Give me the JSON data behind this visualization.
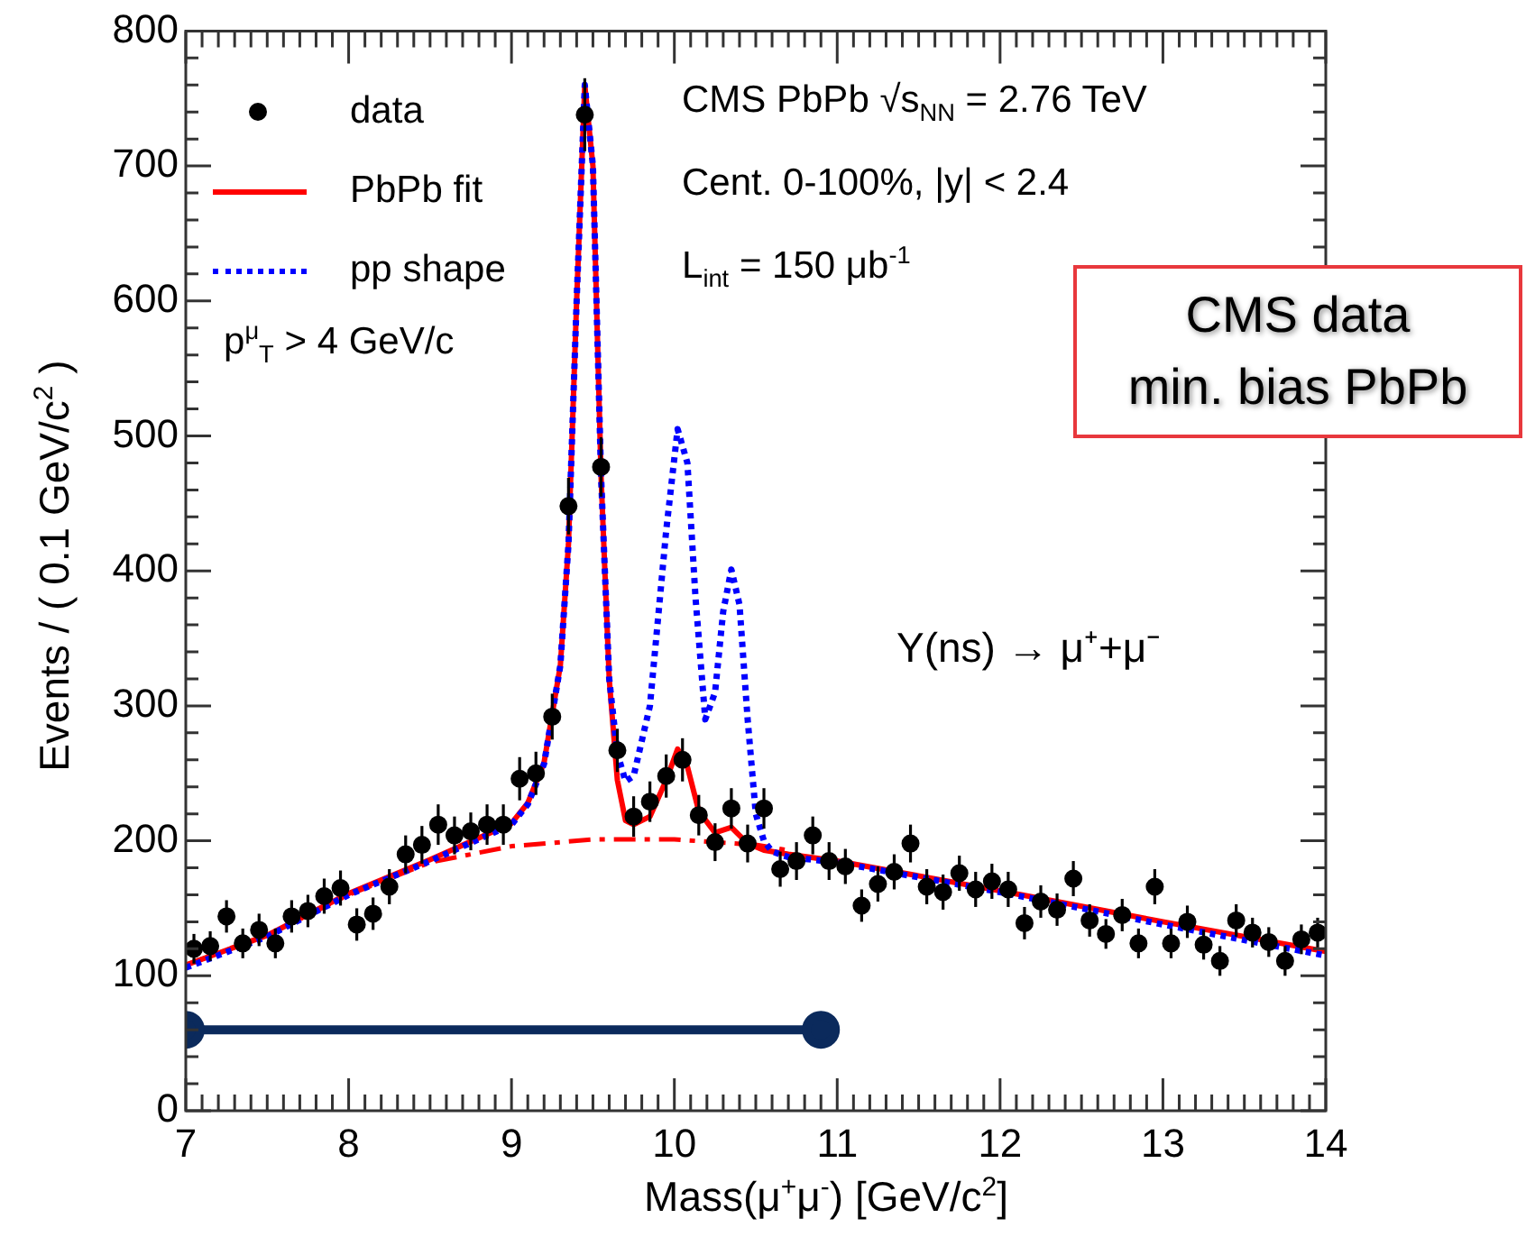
{
  "chart_data": {
    "type": "scatter",
    "xlabel": "Mass(μ$^{+}$μ$^{-}$) [GeV/c$^{2}$]",
    "ylabel": "Events / ( 0.1 GeV/c$^{2}$ )",
    "xlim": [
      7,
      14
    ],
    "xticks": [
      7,
      8,
      9,
      10,
      11,
      12,
      13,
      14
    ],
    "ylim": [
      0,
      800
    ],
    "yticks": [
      0,
      100,
      200,
      300,
      400,
      500,
      600,
      700,
      800
    ],
    "grid": false,
    "legend": "top left",
    "annotations": [
      "CMS PbPb √s$_{NN}$ = 2.76 TeV",
      "Cent. 0-100%, |y| < 2.4",
      "L$_{int}$ = 150 μb$^{-1}$",
      "p$^{μ}$$_{T}$ > 4 GeV/c",
      "Y(ns) → μ⁺+μ⁻",
      "CMS data\nmin. bias PbPb"
    ],
    "series": [
      {
        "name": "data",
        "color": "#000000",
        "marker": "circle",
        "x": [
          7.05,
          7.15,
          7.25,
          7.35,
          7.45,
          7.55,
          7.65,
          7.75,
          7.85,
          7.95,
          8.05,
          8.15,
          8.25,
          8.35,
          8.45,
          8.55,
          8.65,
          8.75,
          8.85,
          8.95,
          9.05,
          9.15,
          9.25,
          9.35,
          9.45,
          9.55,
          9.65,
          9.75,
          9.85,
          9.95,
          10.05,
          10.15,
          10.25,
          10.35,
          10.45,
          10.55,
          10.65,
          10.75,
          10.85,
          10.95,
          11.05,
          11.15,
          11.25,
          11.35,
          11.45,
          11.55,
          11.65,
          11.75,
          11.85,
          11.95,
          12.05,
          12.15,
          12.25,
          12.35,
          12.45,
          12.55,
          12.65,
          12.75,
          12.85,
          12.95,
          13.05,
          13.15,
          13.25,
          13.35,
          13.45,
          13.55,
          13.65,
          13.75,
          13.85,
          13.95
        ],
        "values": [
          120,
          122,
          144,
          124,
          134,
          124,
          144,
          148,
          159,
          165,
          138,
          146,
          166,
          190,
          197,
          212,
          204,
          207,
          212,
          212,
          246,
          250,
          292,
          448,
          738,
          477,
          267,
          218,
          229,
          248,
          260,
          219,
          199,
          224,
          198,
          224,
          179,
          185,
          204,
          185,
          181,
          152,
          168,
          177,
          198,
          166,
          162,
          176,
          164,
          170,
          164,
          139,
          155,
          149,
          172,
          141,
          131,
          145,
          124,
          166,
          124,
          140,
          123,
          111,
          141,
          132,
          125,
          111,
          127,
          132
        ],
        "errors": [
          11,
          11,
          12,
          11,
          12,
          11,
          12,
          12,
          13,
          13,
          12,
          12,
          13,
          14,
          14,
          15,
          14,
          14,
          15,
          15,
          16,
          16,
          17,
          21,
          27,
          22,
          16,
          15,
          15,
          16,
          16,
          15,
          14,
          15,
          14,
          15,
          13,
          14,
          14,
          14,
          13,
          12,
          13,
          13,
          14,
          13,
          13,
          13,
          13,
          13,
          13,
          12,
          12,
          12,
          13,
          12,
          11,
          12,
          11,
          13,
          11,
          12,
          11,
          11,
          12,
          11,
          11,
          11,
          11,
          11
        ]
      },
      {
        "name": "PbPb fit",
        "type": "line",
        "color": "#ff0000",
        "line_style": "solid",
        "x": [
          7,
          7.5,
          8,
          8.5,
          9,
          9.1,
          9.2,
          9.3,
          9.35,
          9.4,
          9.45,
          9.5,
          9.55,
          9.6,
          9.65,
          9.7,
          9.75,
          9.85,
          9.95,
          10.02,
          10.08,
          10.15,
          10.25,
          10.3,
          10.35,
          10.45,
          10.55,
          10.7,
          11,
          12,
          13,
          14
        ],
        "values": [
          108,
          130,
          161,
          186,
          213,
          228,
          258,
          330,
          420,
          600,
          760,
          700,
          470,
          320,
          245,
          215,
          212,
          218,
          245,
          268,
          255,
          222,
          206,
          208,
          210,
          198,
          193,
          190,
          185,
          163,
          140,
          118
        ]
      },
      {
        "name": "pp shape",
        "type": "line",
        "color": "#0000ff",
        "line_style": "dotted",
        "x": [
          7,
          7.5,
          8,
          8.5,
          9,
          9.1,
          9.2,
          9.3,
          9.35,
          9.4,
          9.45,
          9.5,
          9.55,
          9.6,
          9.65,
          9.7,
          9.75,
          9.85,
          9.95,
          10.02,
          10.08,
          10.13,
          10.19,
          10.25,
          10.3,
          10.35,
          10.4,
          10.45,
          10.5,
          10.55,
          10.6,
          10.7,
          11,
          12,
          13,
          14
        ],
        "values": [
          106,
          129,
          160,
          185,
          212,
          227,
          257,
          330,
          420,
          600,
          760,
          700,
          470,
          320,
          265,
          244,
          248,
          300,
          430,
          505,
          480,
          380,
          290,
          310,
          370,
          401,
          375,
          290,
          220,
          200,
          192,
          188,
          184,
          162,
          138,
          115
        ]
      },
      {
        "type": "line",
        "color": "#ff0000",
        "line_style": "dashed",
        "x": [
          7,
          7.5,
          8,
          8.5,
          9,
          9.5,
          10,
          10.5,
          10.7
        ],
        "values": [
          108,
          130,
          160,
          184,
          196,
          201,
          201,
          197,
          193
        ]
      },
      {
        "type": "line",
        "color": "#0b2a5c",
        "marker": "circle",
        "line_style": "solid",
        "x": [
          7,
          10.9
        ],
        "values": [
          60,
          60
        ]
      }
    ]
  }
}
